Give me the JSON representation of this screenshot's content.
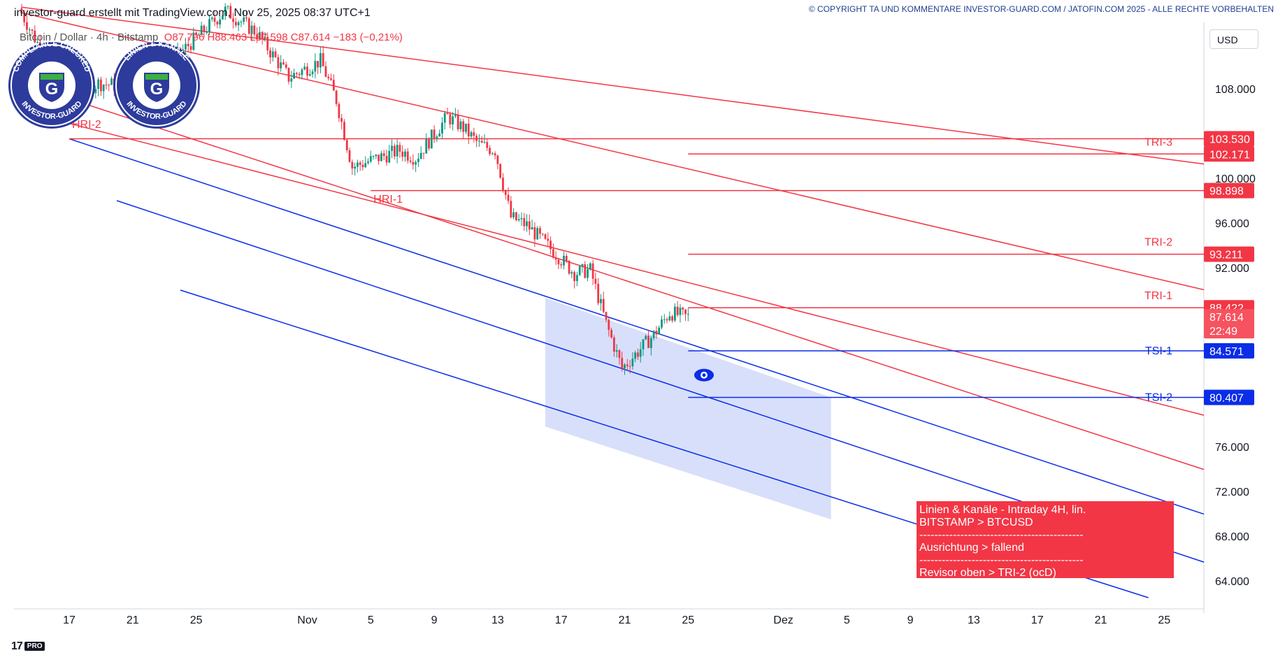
{
  "header": {
    "left_text": "investor-guard erstellt mit TradingView.com, Nov 25, 2025 08:37 UTC+1",
    "right_text": "© COPYRIGHT TA UND KOMMENTARE INVESTOR-GUARD.COM / JATOFIN.COM 2025 - ALLE RECHTE VORBEHALTEN"
  },
  "symbol": {
    "name": "Bitcoin / Dollar · 4h · Bitstamp",
    "ohlc": "O87.796 H88.463 L87.598 C87.614 −183 (−0,21%)"
  },
  "currency_label": "USD",
  "badges": {
    "compliance": {
      "top": "COMPLIANCE CHECKED",
      "bottom": "INVESTOR-GUARD",
      "letter": "G"
    },
    "linien": {
      "top": "LINIEN & KANÄLE",
      "bottom": "INVESTOR-GUARD",
      "letter": "G"
    }
  },
  "info_box": {
    "line1": "Linien & Kanäle - Intraday 4H, lin.",
    "line2": "BITSTAMP > BTCUSD",
    "sep1": "--------------------------------------------",
    "line3": "Ausrichtung > fallend",
    "sep2": "--------------------------------------------",
    "line4": "Revisor oben > TRI-2 (ocD)"
  },
  "tradingview_logo": {
    "text": "17",
    "pro": "PRO"
  },
  "colors": {
    "up": "#089981",
    "down": "#f23645",
    "resistance": "#f23645",
    "support": "#0a2de8",
    "zone": "#d4dcfb",
    "badge_blue": "#2d3b9c",
    "badge_green": "#3cb043"
  },
  "chart_data": {
    "type": "candlestick",
    "y_axis": {
      "ticks": [
        108000,
        100000,
        96000,
        92000,
        76000,
        72000,
        68000,
        64000
      ],
      "tick_labels": [
        "108.000",
        "100.000",
        "96.000",
        "92.000",
        "76.000",
        "72.000",
        "68.000",
        "64.000"
      ]
    },
    "x_axis": {
      "ticks": [
        {
          "date": "2025-10-17",
          "label": "17"
        },
        {
          "date": "2025-10-21",
          "label": "21"
        },
        {
          "date": "2025-10-25",
          "label": "25"
        },
        {
          "date": "2025-11-01",
          "label": "Nov"
        },
        {
          "date": "2025-11-05",
          "label": "5"
        },
        {
          "date": "2025-11-09",
          "label": "9"
        },
        {
          "date": "2025-11-13",
          "label": "13"
        },
        {
          "date": "2025-11-17",
          "label": "17"
        },
        {
          "date": "2025-11-21",
          "label": "21"
        },
        {
          "date": "2025-11-25",
          "label": "25"
        },
        {
          "date": "2025-12-01",
          "label": "Dez"
        },
        {
          "date": "2025-12-05",
          "label": "5"
        },
        {
          "date": "2025-12-09",
          "label": "9"
        },
        {
          "date": "2025-12-13",
          "label": "13"
        },
        {
          "date": "2025-12-17",
          "label": "17"
        },
        {
          "date": "2025-12-21",
          "label": "21"
        },
        {
          "date": "2025-12-25",
          "label": "25"
        }
      ]
    },
    "price_anchors": [
      {
        "date": "2025-10-14",
        "price": 115200
      },
      {
        "date": "2025-10-17",
        "price": 107200
      },
      {
        "date": "2025-10-19",
        "price": 108500
      },
      {
        "date": "2025-10-22",
        "price": 108000
      },
      {
        "date": "2025-10-24",
        "price": 111000
      },
      {
        "date": "2025-10-27",
        "price": 115000
      },
      {
        "date": "2025-10-29",
        "price": 113000
      },
      {
        "date": "2025-10-31",
        "price": 109000
      },
      {
        "date": "2025-11-02",
        "price": 110500
      },
      {
        "date": "2025-11-03",
        "price": 107000
      },
      {
        "date": "2025-11-04",
        "price": 101000
      },
      {
        "date": "2025-11-05",
        "price": 101500
      },
      {
        "date": "2025-11-07",
        "price": 102500
      },
      {
        "date": "2025-11-08",
        "price": 101800
      },
      {
        "date": "2025-11-10",
        "price": 105500
      },
      {
        "date": "2025-11-11",
        "price": 104500
      },
      {
        "date": "2025-11-12",
        "price": 103000
      },
      {
        "date": "2025-11-13",
        "price": 102500
      },
      {
        "date": "2025-11-14",
        "price": 96500
      },
      {
        "date": "2025-11-15",
        "price": 95800
      },
      {
        "date": "2025-11-17",
        "price": 93000
      },
      {
        "date": "2025-11-18",
        "price": 91500
      },
      {
        "date": "2025-11-19",
        "price": 91800
      },
      {
        "date": "2025-11-20",
        "price": 87000
      },
      {
        "date": "2025-11-21",
        "price": 83000
      },
      {
        "date": "2025-11-22",
        "price": 84500
      },
      {
        "date": "2025-11-23",
        "price": 86000
      },
      {
        "date": "2025-11-24",
        "price": 88000
      },
      {
        "date": "2025-11-25",
        "price": 87614
      }
    ],
    "last_price": {
      "value": 87614,
      "label": "87.614",
      "countdown": "22:49"
    },
    "horizontal_levels": [
      {
        "name": "TRI-3",
        "label": "102.171",
        "value": 102171,
        "type": "resistance",
        "start_date": "2025-11-25"
      },
      {
        "name": "",
        "label": "103.530",
        "value": 103530,
        "type": "resistance",
        "start_date": "2025-10-17"
      },
      {
        "name": "",
        "label": "98.898",
        "value": 98898,
        "type": "resistance",
        "start_date": "2025-11-05"
      },
      {
        "name": "TRI-2",
        "label": "93.211",
        "value": 93211,
        "type": "resistance",
        "start_date": "2025-11-25"
      },
      {
        "name": "TRI-1",
        "label": "88.422",
        "value": 88422,
        "type": "resistance",
        "start_date": "2025-11-25"
      },
      {
        "name": "TSI-1",
        "label": "84.571",
        "value": 84571,
        "type": "support",
        "start_date": "2025-11-25"
      },
      {
        "name": "TSI-2",
        "label": "80.407",
        "value": 80407,
        "type": "support",
        "start_date": "2025-11-25"
      }
    ],
    "point_labels": [
      {
        "name": "HRI-2",
        "date": "2025-10-17",
        "price": 104500
      },
      {
        "name": "HRI-1",
        "date": "2025-11-05",
        "price": 97800
      }
    ],
    "trend_lines": [
      {
        "type": "resistance",
        "from": {
          "date": "2025-10-14",
          "price": 115300
        },
        "to": {
          "date": "2025-12-30",
          "price": 100800
        }
      },
      {
        "type": "resistance",
        "from": {
          "date": "2025-10-14",
          "price": 114800
        },
        "to": {
          "date": "2025-12-30",
          "price": 89200
        }
      },
      {
        "type": "resistance",
        "from": {
          "date": "2025-10-14",
          "price": 108500
        },
        "to": {
          "date": "2025-12-30",
          "price": 72800
        }
      },
      {
        "type": "resistance",
        "from": {
          "date": "2025-10-14",
          "price": 106000
        },
        "to": {
          "date": "2025-12-30",
          "price": 77900
        }
      },
      {
        "type": "support",
        "from": {
          "date": "2025-10-17",
          "price": 103530
        },
        "to": {
          "date": "2025-12-30",
          "price": 68800
        }
      },
      {
        "type": "support",
        "from": {
          "date": "2025-10-20",
          "price": 98000
        },
        "to": {
          "date": "2025-12-30",
          "price": 64500
        }
      },
      {
        "type": "support",
        "from": {
          "date": "2025-10-24",
          "price": 90000
        },
        "to": {
          "date": "2025-12-24",
          "price": 62500
        }
      }
    ],
    "zone": {
      "points": [
        {
          "date": "2025-11-16",
          "price": 89300
        },
        {
          "date": "2025-11-16",
          "price": 77800
        },
        {
          "date": "2025-12-04",
          "price": 69500
        },
        {
          "date": "2025-12-04",
          "price": 80400
        }
      ]
    },
    "eye_marker": {
      "date": "2025-11-26",
      "price": 82400
    }
  }
}
